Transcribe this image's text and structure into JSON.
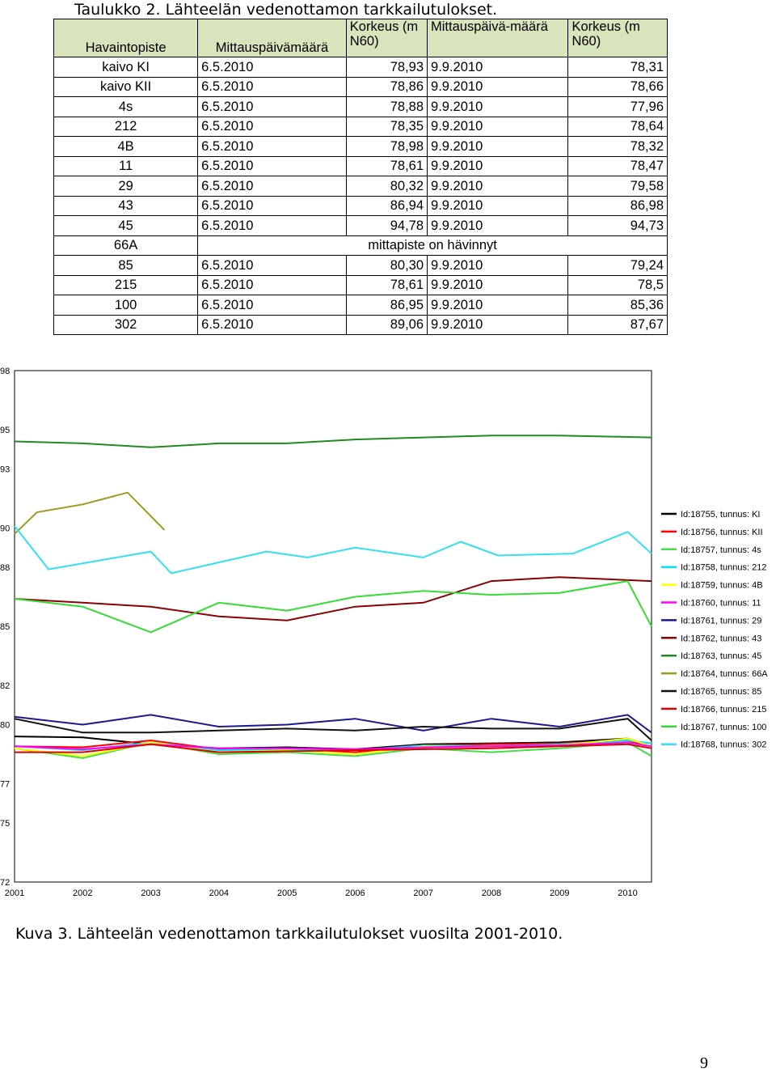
{
  "table_caption": "Taulukko 2. Lähteelän vedenottamon tarkkailutulokset.",
  "table": {
    "headers": [
      "Havaintopiste",
      "Mittauspäivämäärä",
      "Korkeus (m N60)",
      "Mittauspäivä-määrä",
      "Korkeus (m N60)"
    ],
    "rows": [
      {
        "site": "kaivo KI",
        "date1": "6.5.2010",
        "h1": "78,93",
        "date2": "9.9.2010",
        "h2": "78,31"
      },
      {
        "site": "kaivo KII",
        "date1": "6.5.2010",
        "h1": "78,86",
        "date2": "9.9.2010",
        "h2": "78,66"
      },
      {
        "site": "4s",
        "date1": "6.5.2010",
        "h1": "78,88",
        "date2": "9.9.2010",
        "h2": "77,96"
      },
      {
        "site": "212",
        "date1": "6.5.2010",
        "h1": "78,35",
        "date2": "9.9.2010",
        "h2": "78,64"
      },
      {
        "site": "4B",
        "date1": "6.5.2010",
        "h1": "78,98",
        "date2": "9.9.2010",
        "h2": "78,32"
      },
      {
        "site": "11",
        "date1": "6.5.2010",
        "h1": "78,61",
        "date2": "9.9.2010",
        "h2": "78,47"
      },
      {
        "site": "29",
        "date1": "6.5.2010",
        "h1": "80,32",
        "date2": "9.9.2010",
        "h2": "79,58"
      },
      {
        "site": "43",
        "date1": "6.5.2010",
        "h1": "86,94",
        "date2": "9.9.2010",
        "h2": "86,98"
      },
      {
        "site": "45",
        "date1": "6.5.2010",
        "h1": "94,78",
        "date2": "9.9.2010",
        "h2": "94,73"
      },
      {
        "site": "66A",
        "note": "mittapiste on hävinnyt"
      },
      {
        "site": "85",
        "date1": "6.5.2010",
        "h1": "80,30",
        "date2": "9.9.2010",
        "h2": "79,24"
      },
      {
        "site": "215",
        "date1": "6.5.2010",
        "h1": "78,61",
        "date2": "9.9.2010",
        "h2": "78,5"
      },
      {
        "site": "100",
        "date1": "6.5.2010",
        "h1": "86,95",
        "date2": "9.9.2010",
        "h2": "85,36"
      },
      {
        "site": "302",
        "date1": "6.5.2010",
        "h1": "89,06",
        "date2": "9.9.2010",
        "h2": "87,67"
      }
    ]
  },
  "chart_data": {
    "type": "line",
    "title": "",
    "xlabel": "",
    "ylabel": "",
    "ylim": [
      72,
      98
    ],
    "xlim": [
      2001,
      2010.35
    ],
    "y_ticks": [
      "72",
      "75",
      "77",
      "80",
      "82",
      "85",
      "88",
      "90",
      "93",
      "95",
      "98"
    ],
    "x_ticks": [
      "2001",
      "2002",
      "2003",
      "2004",
      "2005",
      "2006",
      "2007",
      "2008",
      "2009",
      "2010"
    ],
    "grid": false,
    "legend_position": "right",
    "series": [
      {
        "name": "Id:18755, tunnus: KI",
        "color": "#000000",
        "points": [
          [
            2001,
            79.4
          ],
          [
            2002,
            79.35
          ],
          [
            2003,
            79.0
          ],
          [
            2004,
            78.8
          ],
          [
            2005,
            78.85
          ],
          [
            2006,
            78.75
          ],
          [
            2007,
            79.0
          ],
          [
            2008,
            79.05
          ],
          [
            2009,
            79.1
          ],
          [
            2010,
            79.3
          ],
          [
            2010.35,
            78.9
          ]
        ]
      },
      {
        "name": "Id:18756, tunnus: KII",
        "color": "#ff0000",
        "points": [
          [
            2001,
            78.9
          ],
          [
            2002,
            78.85
          ],
          [
            2003,
            79.2
          ],
          [
            2004,
            78.75
          ],
          [
            2005,
            78.8
          ],
          [
            2006,
            78.6
          ],
          [
            2007,
            78.95
          ],
          [
            2008,
            79.0
          ],
          [
            2009,
            79.05
          ],
          [
            2010,
            79.2
          ],
          [
            2010.35,
            78.9
          ]
        ]
      },
      {
        "name": "Id:18757, tunnus: 4s",
        "color": "#44dd44",
        "points": [
          [
            2001,
            78.8
          ],
          [
            2002,
            78.3
          ],
          [
            2003,
            79.1
          ],
          [
            2004,
            78.5
          ],
          [
            2005,
            78.6
          ],
          [
            2006,
            78.4
          ],
          [
            2007,
            78.8
          ],
          [
            2008,
            78.6
          ],
          [
            2009,
            78.8
          ],
          [
            2010,
            79.1
          ],
          [
            2010.35,
            78.4
          ]
        ]
      },
      {
        "name": "Id:18758, tunnus: 212",
        "color": "#00e5ee",
        "points": [
          [
            2001,
            78.9
          ],
          [
            2002,
            78.7
          ],
          [
            2003,
            79.1
          ],
          [
            2004,
            78.7
          ],
          [
            2005,
            78.75
          ],
          [
            2006,
            78.7
          ],
          [
            2007,
            78.95
          ],
          [
            2008,
            78.9
          ],
          [
            2009,
            79.0
          ],
          [
            2010,
            79.2
          ],
          [
            2010.35,
            79.05
          ]
        ]
      },
      {
        "name": "Id:18759, tunnus: 4B",
        "color": "#ffff00",
        "points": [
          [
            2001,
            78.8
          ],
          [
            2002,
            78.4
          ],
          [
            2003,
            79.1
          ],
          [
            2004,
            78.6
          ],
          [
            2005,
            78.7
          ],
          [
            2006,
            78.5
          ],
          [
            2007,
            78.9
          ],
          [
            2008,
            78.85
          ],
          [
            2009,
            78.95
          ],
          [
            2010,
            79.3
          ],
          [
            2010.35,
            78.9
          ]
        ]
      },
      {
        "name": "Id:18760, tunnus: 11",
        "color": "#ff00ff",
        "points": [
          [
            2001,
            78.9
          ],
          [
            2002,
            78.75
          ],
          [
            2003,
            79.0
          ],
          [
            2004,
            78.8
          ],
          [
            2005,
            78.8
          ],
          [
            2006,
            78.75
          ],
          [
            2007,
            78.85
          ],
          [
            2008,
            78.9
          ],
          [
            2009,
            78.95
          ],
          [
            2010,
            79.1
          ],
          [
            2010.35,
            78.9
          ]
        ]
      },
      {
        "name": "Id:18761, tunnus: 29",
        "color": "#1a1a8c",
        "points": [
          [
            2001,
            80.4
          ],
          [
            2002,
            80.0
          ],
          [
            2003,
            80.5
          ],
          [
            2004,
            79.9
          ],
          [
            2005,
            80.0
          ],
          [
            2006,
            80.3
          ],
          [
            2007,
            79.7
          ],
          [
            2008,
            80.3
          ],
          [
            2009,
            79.9
          ],
          [
            2010,
            80.5
          ],
          [
            2010.35,
            79.6
          ]
        ]
      },
      {
        "name": "Id:18762, tunnus: 43",
        "color": "#8b0000",
        "points": [
          [
            2001,
            86.4
          ],
          [
            2002,
            86.2
          ],
          [
            2003,
            86.0
          ],
          [
            2004,
            85.5
          ],
          [
            2005,
            85.3
          ],
          [
            2006,
            86.0
          ],
          [
            2007,
            86.2
          ],
          [
            2008,
            87.3
          ],
          [
            2009,
            87.5
          ],
          [
            2010.35,
            87.3
          ]
        ]
      },
      {
        "name": "Id:18763, tunnus: 45",
        "color": "#1e8c1e",
        "points": [
          [
            2001,
            94.4
          ],
          [
            2002,
            94.3
          ],
          [
            2003,
            94.1
          ],
          [
            2004,
            94.3
          ],
          [
            2005,
            94.3
          ],
          [
            2006,
            94.5
          ],
          [
            2007,
            94.6
          ],
          [
            2008,
            94.7
          ],
          [
            2009,
            94.7
          ],
          [
            2010.35,
            94.6
          ]
        ]
      },
      {
        "name": "Id:18764, tunnus: 66A",
        "color": "#9b9b1e",
        "points": [
          [
            2001,
            89.7
          ],
          [
            2001.33,
            90.8
          ],
          [
            2002,
            91.2
          ],
          [
            2002.66,
            91.8
          ],
          [
            2003.2,
            89.9
          ]
        ]
      },
      {
        "name": "Id:18765, tunnus: 85",
        "color": "#111111",
        "points": [
          [
            2001,
            80.3
          ],
          [
            2002,
            79.6
          ],
          [
            2003,
            79.6
          ],
          [
            2004,
            79.7
          ],
          [
            2005,
            79.8
          ],
          [
            2006,
            79.7
          ],
          [
            2007,
            79.9
          ],
          [
            2008,
            79.8
          ],
          [
            2009,
            79.8
          ],
          [
            2010,
            80.3
          ],
          [
            2010.35,
            79.2
          ]
        ]
      },
      {
        "name": "Id:18766, tunnus: 215",
        "color": "#dd0000",
        "points": [
          [
            2001,
            78.6
          ],
          [
            2002,
            78.6
          ],
          [
            2003,
            79.0
          ],
          [
            2004,
            78.6
          ],
          [
            2005,
            78.65
          ],
          [
            2006,
            78.7
          ],
          [
            2007,
            78.75
          ],
          [
            2008,
            78.8
          ],
          [
            2009,
            78.9
          ],
          [
            2010,
            79.0
          ],
          [
            2010.35,
            78.8
          ]
        ]
      },
      {
        "name": "Id:18767, tunnus: 100",
        "color": "#33dd33",
        "points": [
          [
            2001,
            86.4
          ],
          [
            2002,
            86.0
          ],
          [
            2003,
            84.7
          ],
          [
            2004,
            86.2
          ],
          [
            2005,
            85.8
          ],
          [
            2006,
            86.5
          ],
          [
            2007,
            86.8
          ],
          [
            2008,
            86.6
          ],
          [
            2009,
            86.7
          ],
          [
            2010,
            87.3
          ],
          [
            2010.35,
            85.0
          ]
        ]
      },
      {
        "name": "Id:18768, tunnus: 302",
        "color": "#33e0f0",
        "points": [
          [
            2001,
            90.1
          ],
          [
            2001.5,
            87.9
          ],
          [
            2003,
            88.8
          ],
          [
            2003.3,
            87.7
          ],
          [
            2004.7,
            88.8
          ],
          [
            2005.3,
            88.5
          ],
          [
            2006,
            89.0
          ],
          [
            2007,
            88.5
          ],
          [
            2007.55,
            89.3
          ],
          [
            2008.1,
            88.6
          ],
          [
            2009.2,
            88.7
          ],
          [
            2010,
            89.8
          ],
          [
            2010.35,
            88.7
          ]
        ]
      }
    ]
  },
  "figure_caption": "Kuva 3. Lähteelän vedenottamon tarkkailutulokset vuosilta 2001-2010.",
  "page_number": "9"
}
